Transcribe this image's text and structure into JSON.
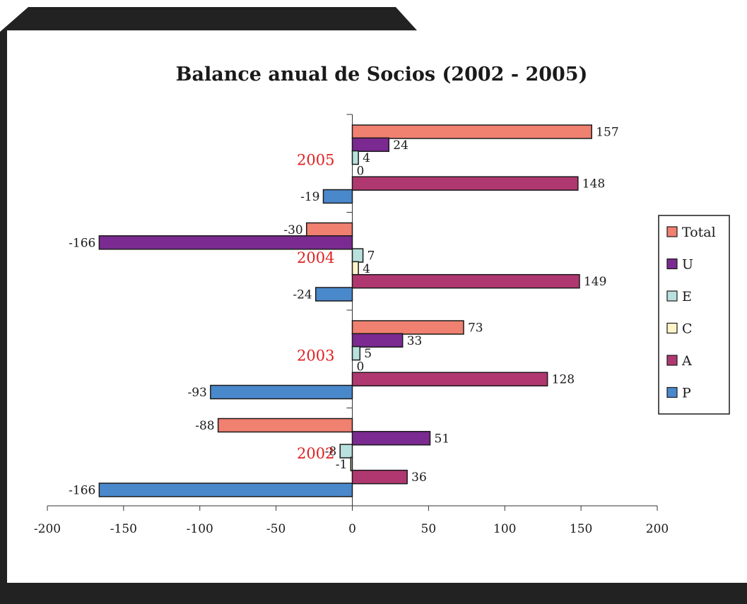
{
  "chart_data": {
    "type": "bar",
    "orientation": "horizontal",
    "title": "Balance anual de Socios (2002 - 2005)",
    "categories": [
      "2005",
      "2004",
      "2003",
      "2002"
    ],
    "xlim": [
      -200,
      200
    ],
    "xticks": [
      "-200",
      "-150",
      "-100",
      "-50",
      "0",
      "50",
      "100",
      "150",
      "200"
    ],
    "legend_position": "right",
    "series": [
      {
        "name": "Total",
        "color": "#f08070",
        "values": [
          157,
          -30,
          73,
          -88
        ]
      },
      {
        "name": "U",
        "color": "#7a2a90",
        "values": [
          24,
          -166,
          33,
          51
        ]
      },
      {
        "name": "E",
        "color": "#b8e0dc",
        "values": [
          4,
          7,
          5,
          -8
        ]
      },
      {
        "name": "C",
        "color": "#fff4c8",
        "values": [
          0,
          4,
          0,
          -1
        ]
      },
      {
        "name": "A",
        "color": "#b03870",
        "values": [
          148,
          149,
          128,
          36
        ]
      },
      {
        "name": "P",
        "color": "#4a88cc",
        "values": [
          -19,
          -24,
          -93,
          -166
        ]
      }
    ]
  }
}
